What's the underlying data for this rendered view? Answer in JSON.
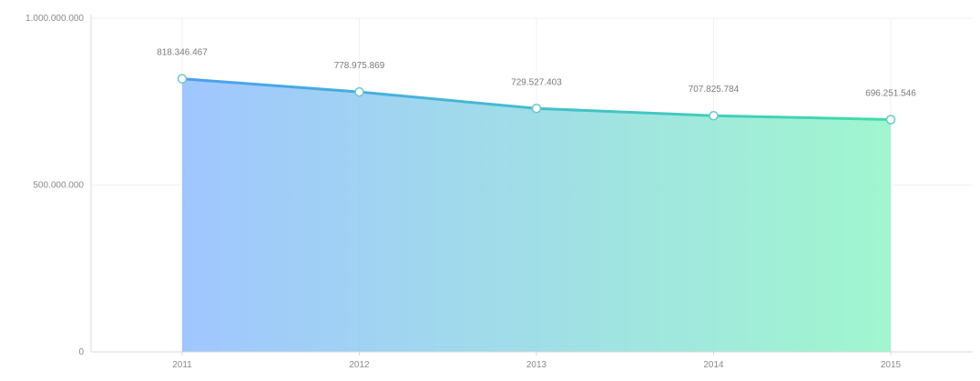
{
  "chart_data": {
    "type": "area",
    "categories": [
      "2011",
      "2012",
      "2013",
      "2014",
      "2015"
    ],
    "values": [
      818346467,
      778975869,
      729527403,
      707825784,
      696251546
    ],
    "value_labels": [
      "818.346.467",
      "778.975.869",
      "729.527.403",
      "707.825.784",
      "696.251.546"
    ],
    "ylim": [
      0,
      1000000000
    ],
    "y_ticks": [
      0,
      500000000,
      1000000000
    ],
    "y_tick_labels": [
      "0",
      "500.000.000",
      "1.000.000.000"
    ],
    "grid": true,
    "legend": "none",
    "colors": {
      "gradient_start": "#8fbcff",
      "gradient_end": "#8ff5c6",
      "line_start": "#4a9ff0",
      "line_end": "#3fdca8",
      "point_stroke": "#66c9c8"
    }
  }
}
